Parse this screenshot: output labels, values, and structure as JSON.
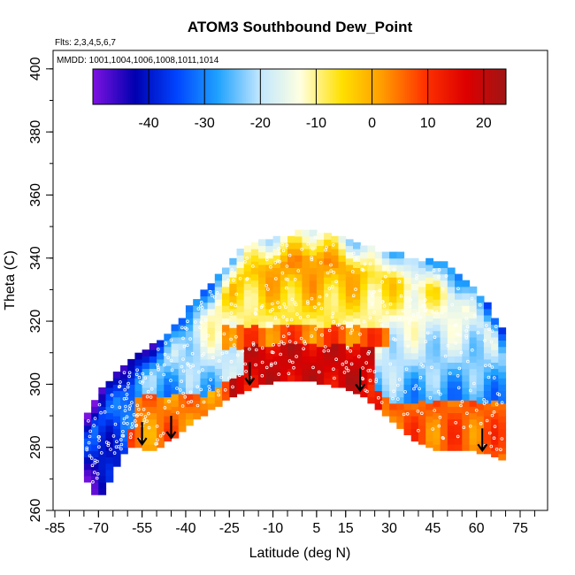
{
  "chart_data": {
    "type": "heatmap",
    "title": "ATOM3 Southbound Dew_Point",
    "flights_note": "Flts: 2,3,4,5,6,7",
    "dates_note": "MMDD: 1001,1004,1006,1008,1011,1014",
    "xlabel": "Latitude (deg N)",
    "ylabel": "Theta (C)",
    "xlim": [
      -90,
      87
    ],
    "ylim": [
      260,
      405
    ],
    "x_ticks": [
      -85,
      -70,
      -55,
      -40,
      -25,
      -10,
      5,
      15,
      30,
      45,
      60,
      75
    ],
    "y_ticks": [
      260,
      280,
      300,
      320,
      340,
      360,
      380,
      400
    ],
    "colorbar": {
      "ticks": [
        -40,
        -30,
        -20,
        -10,
        0,
        10,
        20
      ],
      "range": [
        -50,
        24
      ],
      "colors": [
        "#7a12e0",
        "#0000b0",
        "#0044ff",
        "#1fa2ff",
        "#bfe6ff",
        "#ffffe0",
        "#ffe000",
        "#ff9a00",
        "#ff3300",
        "#dd0000",
        "#a01515"
      ]
    },
    "tropopause_arrows": [
      {
        "lat": -55,
        "theta": 288
      },
      {
        "lat": -45,
        "theta": 290
      },
      {
        "lat": -18,
        "theta": 307
      },
      {
        "lat": 20,
        "theta": 305
      },
      {
        "lat": 62,
        "theta": 286
      }
    ],
    "profile": [
      {
        "lat": -75,
        "top": 287,
        "bottom": 272
      },
      {
        "lat": -70,
        "top": 296,
        "bottom": 263
      },
      {
        "lat": -65,
        "top": 301,
        "bottom": 272
      },
      {
        "lat": -60,
        "top": 306,
        "bottom": 281
      },
      {
        "lat": -55,
        "top": 309,
        "bottom": 280
      },
      {
        "lat": -50,
        "top": 312,
        "bottom": 279
      },
      {
        "lat": -45,
        "top": 317,
        "bottom": 283
      },
      {
        "lat": -40,
        "top": 322,
        "bottom": 286
      },
      {
        "lat": -35,
        "top": 327,
        "bottom": 290
      },
      {
        "lat": -30,
        "top": 332,
        "bottom": 293
      },
      {
        "lat": -25,
        "top": 337,
        "bottom": 296
      },
      {
        "lat": -20,
        "top": 343,
        "bottom": 298
      },
      {
        "lat": -15,
        "top": 344,
        "bottom": 300
      },
      {
        "lat": -10,
        "top": 345,
        "bottom": 301
      },
      {
        "lat": -5,
        "top": 346,
        "bottom": 301
      },
      {
        "lat": 0,
        "top": 348,
        "bottom": 301
      },
      {
        "lat": 5,
        "top": 348,
        "bottom": 301
      },
      {
        "lat": 10,
        "top": 347,
        "bottom": 300
      },
      {
        "lat": 15,
        "top": 345,
        "bottom": 299
      },
      {
        "lat": 20,
        "top": 343,
        "bottom": 297
      },
      {
        "lat": 25,
        "top": 342,
        "bottom": 294
      },
      {
        "lat": 30,
        "top": 341,
        "bottom": 289
      },
      {
        "lat": 35,
        "top": 340,
        "bottom": 285
      },
      {
        "lat": 40,
        "top": 339,
        "bottom": 282
      },
      {
        "lat": 45,
        "top": 338,
        "bottom": 280
      },
      {
        "lat": 50,
        "top": 337,
        "bottom": 279
      },
      {
        "lat": 55,
        "top": 333,
        "bottom": 279
      },
      {
        "lat": 60,
        "top": 329,
        "bottom": 279
      },
      {
        "lat": 65,
        "top": 323,
        "bottom": 278
      },
      {
        "lat": 70,
        "top": 314,
        "bottom": 276
      }
    ],
    "regions": [
      {
        "name": "tropical-warm-core",
        "lat_min": -20,
        "lat_max": 25,
        "theta_min": 300,
        "theta_max": 312,
        "value": 18
      },
      {
        "name": "tropical-upper-warm",
        "lat_min": -28,
        "lat_max": 30,
        "theta_min": 312,
        "theta_max": 318,
        "value": 6
      },
      {
        "name": "south-warm-base",
        "lat_min": -58,
        "lat_max": -20,
        "theta_min": 280,
        "theta_max": 296,
        "value": 4
      },
      {
        "name": "north-warm-base",
        "lat_min": 30,
        "lat_max": 70,
        "theta_min": 278,
        "theta_max": 294,
        "value": 6
      }
    ]
  }
}
